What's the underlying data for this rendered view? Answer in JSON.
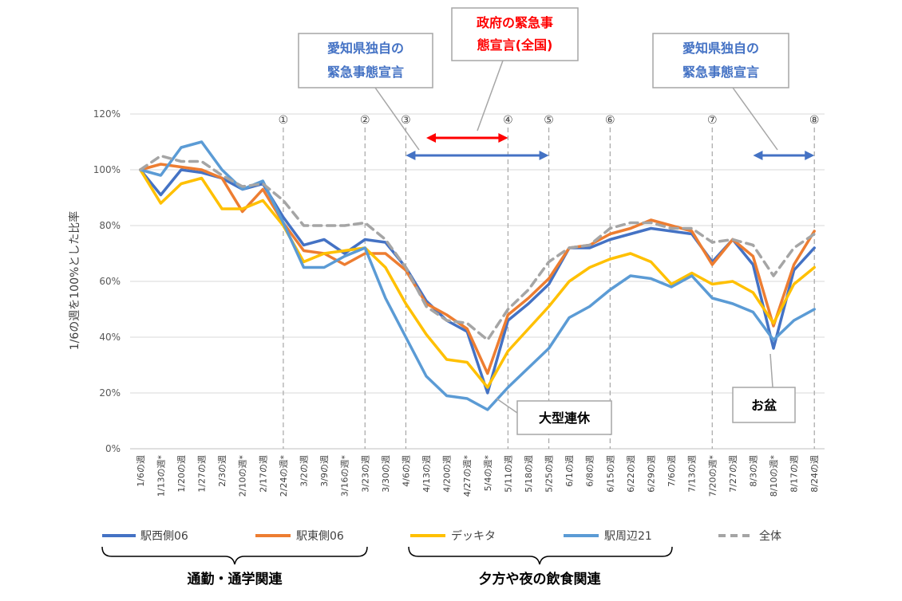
{
  "chart_data": {
    "type": "line",
    "ylabel": "1/6の週を100%とした比率",
    "ylim": [
      0,
      1.2
    ],
    "yticks": [
      "0%",
      "20%",
      "40%",
      "60%",
      "80%",
      "100%",
      "120%"
    ],
    "categories": [
      "1/6の週",
      "1/13の週*",
      "1/20の週",
      "1/27の週",
      "2/3の週",
      "2/10の週*",
      "2/17の週",
      "2/24の週*",
      "3/2の週",
      "3/9の週",
      "3/16の週*",
      "3/23の週",
      "3/30の週",
      "4/6の週",
      "4/13の週",
      "4/20の週",
      "4/27の週*",
      "5/4の週*",
      "5/11の週",
      "5/18の週",
      "5/25の週",
      "6/1の週",
      "6/8の週",
      "6/15の週",
      "6/22の週",
      "6/29の週",
      "7/6の週",
      "7/13の週",
      "7/20の週*",
      "7/27の週",
      "8/3の週",
      "8/10の週*",
      "8/17の週",
      "8/24の週"
    ],
    "series": [
      {
        "name": "駅西側06",
        "color": "#4472c4",
        "dash": false,
        "values": [
          1.0,
          0.91,
          1.0,
          0.99,
          0.97,
          0.93,
          0.95,
          0.83,
          0.73,
          0.75,
          0.7,
          0.75,
          0.74,
          0.65,
          0.53,
          0.46,
          0.42,
          0.2,
          0.46,
          0.52,
          0.59,
          0.72,
          0.72,
          0.75,
          0.77,
          0.79,
          0.78,
          0.77,
          0.67,
          0.75,
          0.66,
          0.36,
          0.64,
          0.72
        ]
      },
      {
        "name": "駅東側06",
        "color": "#ed7d31",
        "dash": false,
        "values": [
          1.0,
          1.02,
          1.01,
          1.0,
          0.97,
          0.85,
          0.93,
          0.81,
          0.71,
          0.7,
          0.66,
          0.7,
          0.7,
          0.64,
          0.52,
          0.48,
          0.43,
          0.27,
          0.48,
          0.54,
          0.61,
          0.72,
          0.73,
          0.77,
          0.79,
          0.82,
          0.8,
          0.78,
          0.66,
          0.75,
          0.69,
          0.44,
          0.66,
          0.78
        ]
      },
      {
        "name": "デッキタ",
        "color": "#ffc000",
        "dash": false,
        "values": [
          1.0,
          0.88,
          0.95,
          0.97,
          0.86,
          0.86,
          0.89,
          0.8,
          0.67,
          0.7,
          0.71,
          0.72,
          0.65,
          0.52,
          0.41,
          0.32,
          0.31,
          0.22,
          0.35,
          0.43,
          0.51,
          0.6,
          0.65,
          0.68,
          0.7,
          0.67,
          0.59,
          0.63,
          0.59,
          0.6,
          0.56,
          0.45,
          0.59,
          0.65
        ]
      },
      {
        "name": "駅周辺21",
        "color": "#5b9bd5",
        "dash": false,
        "values": [
          1.0,
          0.98,
          1.08,
          1.1,
          1.0,
          0.93,
          0.96,
          0.81,
          0.65,
          0.65,
          0.69,
          0.72,
          0.54,
          0.4,
          0.26,
          0.19,
          0.18,
          0.14,
          0.22,
          0.29,
          0.36,
          0.47,
          0.51,
          0.57,
          0.62,
          0.61,
          0.58,
          0.62,
          0.54,
          0.52,
          0.49,
          0.39,
          0.46,
          0.5
        ]
      },
      {
        "name": "全体",
        "color": "#a5a5a5",
        "dash": true,
        "values": [
          1.0,
          1.05,
          1.03,
          1.03,
          0.98,
          0.94,
          0.95,
          0.89,
          0.8,
          0.8,
          0.8,
          0.81,
          0.75,
          0.65,
          0.51,
          0.46,
          0.45,
          0.39,
          0.5,
          0.57,
          0.67,
          0.72,
          0.73,
          0.79,
          0.81,
          0.81,
          0.79,
          0.79,
          0.74,
          0.75,
          0.73,
          0.62,
          0.72,
          0.77
        ]
      }
    ],
    "markers": [
      {
        "label": "①",
        "index": 7
      },
      {
        "label": "②",
        "index": 11
      },
      {
        "label": "③",
        "index": 13
      },
      {
        "label": "④",
        "index": 18
      },
      {
        "label": "⑤",
        "index": 20
      },
      {
        "label": "⑥",
        "index": 23
      },
      {
        "label": "⑦",
        "index": 28
      },
      {
        "label": "⑧",
        "index": 33
      }
    ],
    "ranges": [
      {
        "from": 13,
        "to": 20,
        "color": "#4472c4"
      },
      {
        "from": 14,
        "to": 18,
        "color": "#ff0000"
      },
      {
        "from": 30,
        "to": 33,
        "color": "#4472c4"
      }
    ],
    "callouts": {
      "aichi_1": [
        "愛知県独自の",
        "緊急事態宣言"
      ],
      "govt": [
        "政府の緊急事",
        "態宣言(全国)"
      ],
      "aichi_2": [
        "愛知県独自の",
        "緊急事態宣言"
      ],
      "golden_week": "大型連休",
      "obon": "お盆"
    },
    "groups": {
      "commute": "通勤・通学関連",
      "dining": "夕方や夜の飲食関連"
    },
    "grid": "horizontal",
    "legend": "bottom"
  }
}
